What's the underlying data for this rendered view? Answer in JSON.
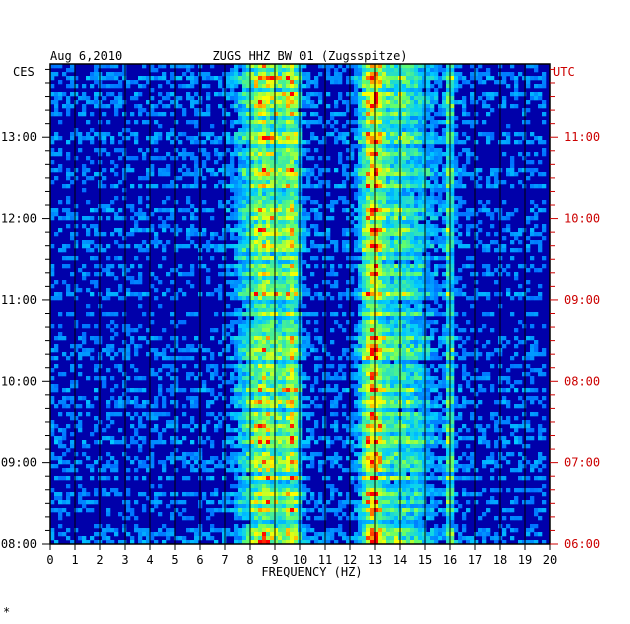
{
  "chart_data": {
    "type": "heatmap",
    "date": "Aug 6,2010",
    "title": "ZUGS HHZ BW 01 (Zugsspitze)",
    "xlabel": "FREQUENCY (HZ)",
    "xlim": [
      0,
      20
    ],
    "x_ticks": [
      0,
      1,
      2,
      3,
      4,
      5,
      6,
      7,
      8,
      9,
      10,
      11,
      12,
      13,
      14,
      15,
      16,
      17,
      18,
      19,
      20
    ],
    "left_timezone": "CES",
    "right_timezone": "UTC",
    "left_time_ticks": [
      "13:00",
      "12:00",
      "11:00",
      "10:00",
      "09:00",
      "08:00"
    ],
    "right_time_ticks": [
      "11:00",
      "10:00",
      "09:00",
      "08:00",
      "07:00",
      "06:00"
    ],
    "time_range_cest_hours": [
      8.0,
      13.9
    ],
    "colormap": [
      "#0000aa",
      "#0033ff",
      "#00ccff",
      "#66ff66",
      "#ffff00",
      "#ff0000"
    ],
    "energy_bands_hz": [
      {
        "center": 8.6,
        "width": 0.9,
        "strength": 0.8
      },
      {
        "center": 9.7,
        "width": 0.3,
        "strength": 0.7
      },
      {
        "center": 12.9,
        "width": 0.4,
        "strength": 0.9
      },
      {
        "center": 14.0,
        "width": 1.2,
        "strength": 0.5
      },
      {
        "center": 16.0,
        "width": 0.15,
        "strength": 0.6
      }
    ],
    "colors": {
      "left_axis": "#000000",
      "right_axis": "#cc0000",
      "background": "#0000aa",
      "grid": "#000000"
    }
  },
  "footnote": "*"
}
